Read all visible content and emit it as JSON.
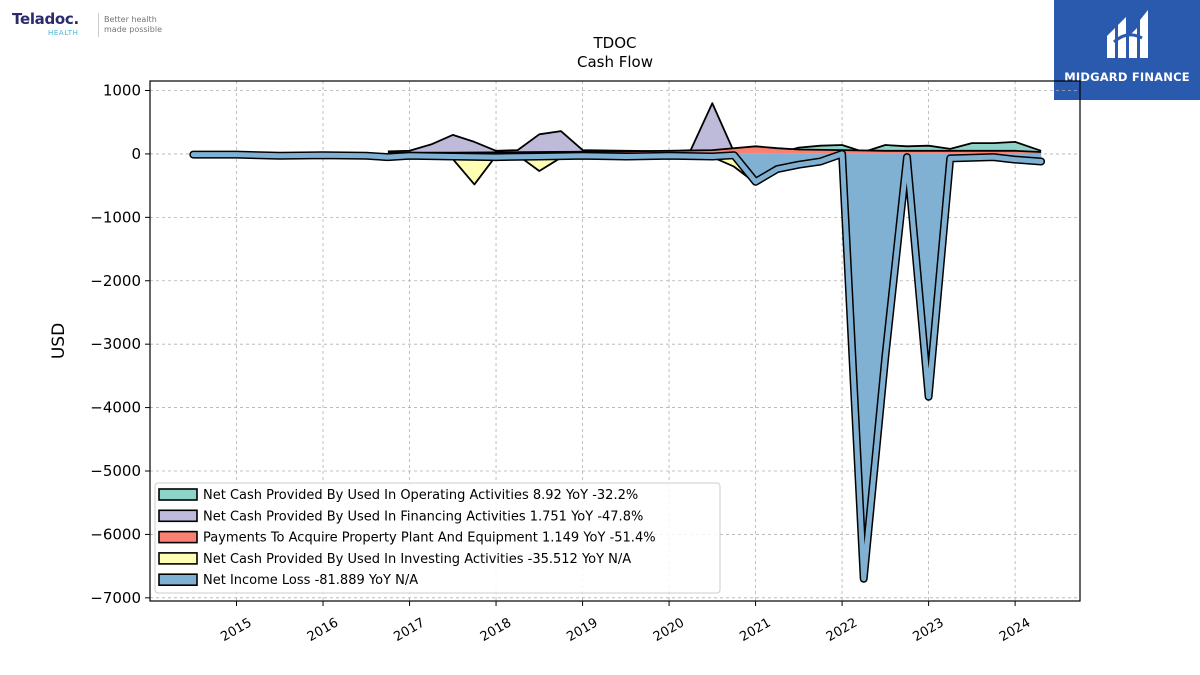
{
  "header": {
    "left_logo": {
      "name": "Teladoc.",
      "sub": "HEALTH",
      "tagline_1": "Better health",
      "tagline_2": "made possible"
    },
    "right_logo": {
      "name": "MIDGARD FINANCE",
      "bg_color": "#2a5aad"
    }
  },
  "chart_data": {
    "type": "area",
    "title": "TDOC",
    "subtitle": "Cash Flow",
    "xlabel": "",
    "ylabel": "USD",
    "xlim": [
      2014.0,
      2024.75
    ],
    "ylim": [
      -7050,
      1150
    ],
    "yticks": [
      1000,
      0,
      -1000,
      -2000,
      -3000,
      -4000,
      -5000,
      -6000,
      -7000
    ],
    "ytick_labels": [
      "1000",
      "0",
      "−1000",
      "−2000",
      "−3000",
      "−4000",
      "−5000",
      "−6000",
      "−7000"
    ],
    "xticks": [
      2015,
      2016,
      2017,
      2018,
      2019,
      2020,
      2021,
      2022,
      2023,
      2024
    ],
    "xtick_labels": [
      "2015",
      "2016",
      "2017",
      "2018",
      "2019",
      "2020",
      "2021",
      "2022",
      "2023",
      "2024"
    ],
    "grid": true,
    "legend_position": "lower-left",
    "series": [
      {
        "name": "Net Cash Provided By Used In Operating Activities",
        "legend": "Net Cash Provided By Used In Operating Activities  8.92 YoY -32.2%",
        "color": "#8dd3c7",
        "points": [
          [
            2016.75,
            10
          ],
          [
            2017.0,
            5
          ],
          [
            2017.5,
            -20
          ],
          [
            2017.75,
            -15
          ],
          [
            2018.0,
            0
          ],
          [
            2018.5,
            -5
          ],
          [
            2018.75,
            5
          ],
          [
            2019.0,
            0
          ],
          [
            2019.5,
            10
          ],
          [
            2020.0,
            20
          ],
          [
            2020.25,
            30
          ],
          [
            2020.5,
            60
          ],
          [
            2020.75,
            60
          ],
          [
            2021.0,
            -150
          ],
          [
            2021.25,
            10
          ],
          [
            2021.5,
            100
          ],
          [
            2021.75,
            130
          ],
          [
            2022.0,
            140
          ],
          [
            2022.25,
            30
          ],
          [
            2022.5,
            140
          ],
          [
            2022.75,
            120
          ],
          [
            2023.0,
            130
          ],
          [
            2023.25,
            80
          ],
          [
            2023.5,
            170
          ],
          [
            2023.75,
            170
          ],
          [
            2024.0,
            190
          ],
          [
            2024.3,
            50
          ]
        ]
      },
      {
        "name": "Net Cash Provided By Used In Financing Activities",
        "legend": "Net Cash Provided By Used In Financing Activities  1.751 YoY -47.8%",
        "color": "#bebada",
        "points": [
          [
            2016.75,
            40
          ],
          [
            2017.0,
            50
          ],
          [
            2017.25,
            150
          ],
          [
            2017.5,
            300
          ],
          [
            2017.75,
            190
          ],
          [
            2018.0,
            50
          ],
          [
            2018.25,
            60
          ],
          [
            2018.5,
            310
          ],
          [
            2018.75,
            360
          ],
          [
            2019.0,
            60
          ],
          [
            2019.5,
            50
          ],
          [
            2020.0,
            40
          ],
          [
            2020.25,
            60
          ],
          [
            2020.5,
            800
          ],
          [
            2020.75,
            30
          ],
          [
            2021.0,
            60
          ],
          [
            2021.5,
            30
          ],
          [
            2022.0,
            40
          ],
          [
            2022.5,
            40
          ],
          [
            2023.0,
            30
          ],
          [
            2023.5,
            20
          ],
          [
            2024.0,
            20
          ],
          [
            2024.3,
            10
          ]
        ]
      },
      {
        "name": "Payments To Acquire Property Plant And Equipment",
        "legend": "Payments To Acquire Property Plant And Equipment  1.149 YoY -51.4%",
        "color": "#fb8072",
        "points": [
          [
            2016.75,
            20
          ],
          [
            2017.5,
            20
          ],
          [
            2018.5,
            30
          ],
          [
            2019.5,
            40
          ],
          [
            2020.0,
            50
          ],
          [
            2020.5,
            60
          ],
          [
            2021.0,
            120
          ],
          [
            2021.25,
            90
          ],
          [
            2021.5,
            70
          ],
          [
            2022.0,
            60
          ],
          [
            2022.5,
            50
          ],
          [
            2023.0,
            50
          ],
          [
            2023.5,
            50
          ],
          [
            2024.0,
            50
          ],
          [
            2024.3,
            30
          ]
        ]
      },
      {
        "name": "Net Cash Provided By Used In Investing Activities",
        "legend": "Net Cash Provided By Used In Investing Activities  -35.512 YoY N/A",
        "color": "#ffffb3",
        "points": [
          [
            2016.75,
            -10
          ],
          [
            2017.0,
            -20
          ],
          [
            2017.5,
            -80
          ],
          [
            2017.75,
            -480
          ],
          [
            2018.0,
            -30
          ],
          [
            2018.25,
            -20
          ],
          [
            2018.5,
            -270
          ],
          [
            2018.75,
            -60
          ],
          [
            2019.0,
            -40
          ],
          [
            2019.5,
            -30
          ],
          [
            2020.0,
            -30
          ],
          [
            2020.25,
            -40
          ],
          [
            2020.5,
            -50
          ],
          [
            2020.75,
            -200
          ],
          [
            2021.0,
            -460
          ],
          [
            2021.25,
            -20
          ],
          [
            2021.5,
            -20
          ],
          [
            2022.0,
            -40
          ],
          [
            2022.5,
            -60
          ],
          [
            2023.0,
            -80
          ],
          [
            2023.5,
            -60
          ],
          [
            2024.0,
            -50
          ],
          [
            2024.3,
            -40
          ]
        ]
      },
      {
        "name": "Net Income Loss",
        "legend": "Net Income Loss  -81.889 YoY N/A",
        "color": "#80b1d3",
        "points": [
          [
            2014.5,
            -10
          ],
          [
            2015.0,
            -10
          ],
          [
            2015.5,
            -30
          ],
          [
            2016.0,
            -20
          ],
          [
            2016.5,
            -30
          ],
          [
            2016.75,
            -50
          ],
          [
            2017.0,
            -30
          ],
          [
            2017.5,
            -40
          ],
          [
            2018.0,
            -50
          ],
          [
            2018.5,
            -40
          ],
          [
            2019.0,
            -30
          ],
          [
            2019.5,
            -40
          ],
          [
            2020.0,
            -30
          ],
          [
            2020.5,
            -40
          ],
          [
            2020.75,
            -20
          ],
          [
            2021.0,
            -440
          ],
          [
            2021.25,
            -240
          ],
          [
            2021.5,
            -170
          ],
          [
            2021.75,
            -120
          ],
          [
            2022.0,
            0
          ],
          [
            2022.25,
            -6700
          ],
          [
            2022.5,
            -3200
          ],
          [
            2022.75,
            -50
          ],
          [
            2023.0,
            -3830
          ],
          [
            2023.25,
            -70
          ],
          [
            2023.5,
            -60
          ],
          [
            2023.75,
            -50
          ],
          [
            2024.0,
            -90
          ],
          [
            2024.3,
            -120
          ]
        ]
      }
    ]
  }
}
